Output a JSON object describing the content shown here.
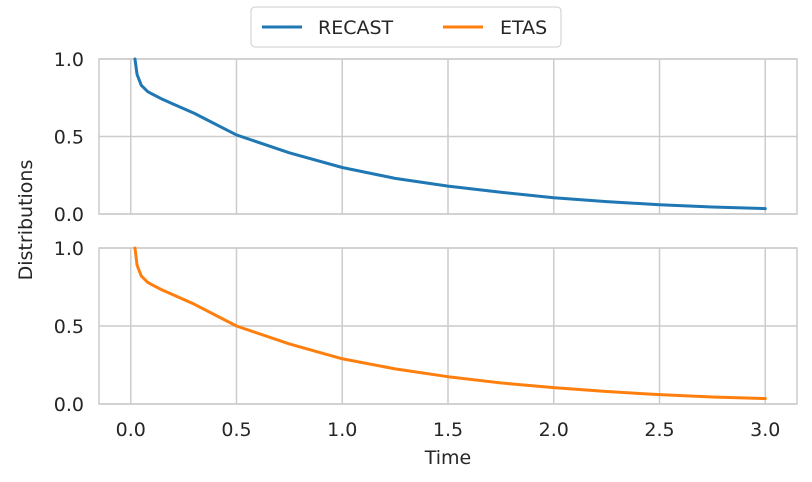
{
  "chart_data": {
    "type": "line",
    "xlabel": "Time",
    "ylabel": "Distributions",
    "xlim": [
      -0.15,
      3.15
    ],
    "ylim": [
      0.0,
      1.0
    ],
    "xticks": [
      0.0,
      0.5,
      1.0,
      1.5,
      2.0,
      2.5,
      3.0
    ],
    "xtick_labels": [
      "0.0",
      "0.5",
      "1.0",
      "1.5",
      "2.0",
      "2.5",
      "3.0"
    ],
    "yticks": [
      0.0,
      0.5,
      1.0
    ],
    "ytick_labels": [
      "0.0",
      "0.5",
      "1.0"
    ],
    "grid": true,
    "legend_position": "top-center",
    "legend": [
      "RECAST",
      "ETAS"
    ],
    "colors": {
      "RECAST": "#1f77b4",
      "ETAS": "#ff7f0e",
      "grid": "#cccccc",
      "text": "#262626"
    },
    "panels": [
      {
        "name": "RECAST",
        "color": "#1f77b4",
        "x": [
          0.02,
          0.03,
          0.05,
          0.08,
          0.1,
          0.15,
          0.2,
          0.3,
          0.5,
          0.75,
          1.0,
          1.25,
          1.5,
          1.75,
          2.0,
          2.25,
          2.5,
          2.75,
          3.0
        ],
        "y": [
          1.0,
          0.9,
          0.83,
          0.79,
          0.775,
          0.74,
          0.71,
          0.65,
          0.51,
          0.395,
          0.3,
          0.23,
          0.18,
          0.14,
          0.105,
          0.08,
          0.06,
          0.045,
          0.035
        ]
      },
      {
        "name": "ETAS",
        "color": "#ff7f0e",
        "x": [
          0.02,
          0.03,
          0.05,
          0.08,
          0.1,
          0.15,
          0.2,
          0.3,
          0.5,
          0.75,
          1.0,
          1.25,
          1.5,
          1.75,
          2.0,
          2.25,
          2.5,
          2.75,
          3.0
        ],
        "y": [
          1.0,
          0.89,
          0.82,
          0.78,
          0.765,
          0.73,
          0.7,
          0.64,
          0.5,
          0.385,
          0.29,
          0.225,
          0.175,
          0.135,
          0.105,
          0.08,
          0.06,
          0.045,
          0.035
        ]
      }
    ]
  }
}
